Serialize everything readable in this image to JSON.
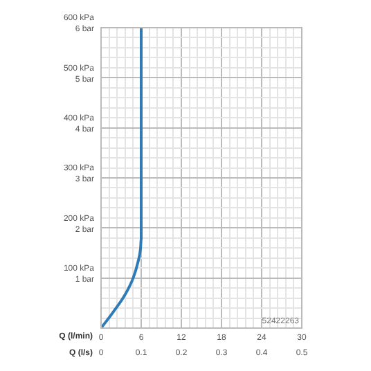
{
  "chart_data": {
    "type": "line",
    "xlabel": "Q (l/min)",
    "x2label": "Q (l/s)",
    "grid": true,
    "legend": false,
    "marker": "none",
    "line_style": "solid",
    "series": [
      {
        "color": "#2f7bb6",
        "x": [
          0,
          1.7,
          3.6,
          4.8,
          5.5,
          5.9,
          6,
          6
        ],
        "values": [
          0,
          30,
          67,
          100,
          131,
          159,
          178,
          600
        ]
      }
    ],
    "xlim": [
      0,
      30
    ],
    "xticks": [
      0,
      {
        "value": 1.2,
        "label": null
      },
      {
        "value": 2.4,
        "label": null
      },
      {
        "value": 3.6,
        "label": null
      },
      {
        "value": 4.8,
        "label": null
      },
      6,
      {
        "value": 7.2,
        "label": null
      },
      {
        "value": 8.4,
        "label": null
      },
      {
        "value": 9.6,
        "label": null
      },
      {
        "value": 10.8,
        "label": null
      },
      12,
      {
        "value": 13.2,
        "label": null
      },
      {
        "value": 14.4,
        "label": null
      },
      {
        "value": 15.6,
        "label": null
      },
      {
        "value": 16.8,
        "label": null
      },
      18,
      {
        "value": 19.2,
        "label": null
      },
      {
        "value": 20.4,
        "label": null
      },
      {
        "value": 21.6,
        "label": null
      },
      {
        "value": 22.8,
        "label": null
      },
      24,
      {
        "value": 25.2,
        "label": null
      },
      {
        "value": 26.4,
        "label": null
      },
      {
        "value": 27.6,
        "label": null
      },
      {
        "value": 28.8,
        "label": null
      },
      30
    ],
    "x2lim": [
      0,
      0.5
    ],
    "x2ticks": [
      0,
      0.1,
      0.2,
      0.3,
      0.4,
      0.5
    ],
    "ylim": [
      0,
      600
    ],
    "yticks": [
      {
        "value": 0,
        "label": null
      },
      {
        "value": 20,
        "label": null
      },
      {
        "value": 40,
        "label": null
      },
      {
        "value": 60,
        "label": null
      },
      {
        "value": 80,
        "label": null
      },
      {
        "value": 100,
        "label": "100 kPa"
      },
      {
        "value": 120,
        "label": null
      },
      {
        "value": 140,
        "label": null
      },
      {
        "value": 160,
        "label": null
      },
      {
        "value": 180,
        "label": null
      },
      {
        "value": 200,
        "label": "200 kPa"
      },
      {
        "value": 220,
        "label": null
      },
      {
        "value": 240,
        "label": null
      },
      {
        "value": 260,
        "label": null
      },
      {
        "value": 280,
        "label": null
      },
      {
        "value": 300,
        "label": "300 kPa"
      },
      {
        "value": 320,
        "label": null
      },
      {
        "value": 340,
        "label": null
      },
      {
        "value": 360,
        "label": null
      },
      {
        "value": 380,
        "label": null
      },
      {
        "value": 400,
        "label": "400 kPa"
      },
      {
        "value": 420,
        "label": null
      },
      {
        "value": 440,
        "label": null
      },
      {
        "value": 460,
        "label": null
      },
      {
        "value": 480,
        "label": null
      },
      {
        "value": 500,
        "label": "500 kPa"
      },
      {
        "value": 520,
        "label": null
      },
      {
        "value": 540,
        "label": null
      },
      {
        "value": 560,
        "label": null
      },
      {
        "value": 580,
        "label": null
      },
      {
        "value": 600,
        "label": "600 kPa"
      }
    ],
    "y2lim": [
      0,
      6
    ],
    "y2ticks": [
      {
        "value": 1,
        "label": "1 bar"
      },
      {
        "value": 2,
        "label": "2 bar"
      },
      {
        "value": 3,
        "label": "3 bar"
      },
      {
        "value": 4,
        "label": "4 bar"
      },
      {
        "value": 5,
        "label": "5 bar"
      },
      {
        "value": 6,
        "label": "6 bar"
      }
    ],
    "annotations": [
      "52422263"
    ]
  }
}
